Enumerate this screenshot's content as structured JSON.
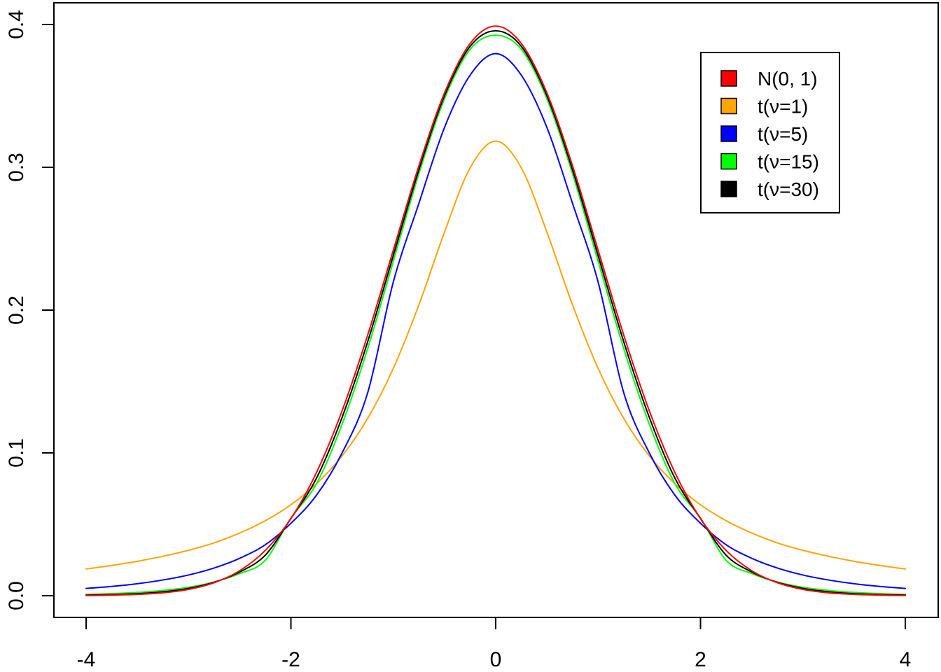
{
  "chart_data": {
    "type": "line",
    "title": "",
    "xlabel": "",
    "ylabel": "",
    "xlim": [
      -4,
      4
    ],
    "ylim": [
      0,
      0.4
    ],
    "x_ticks": [
      -4,
      -2,
      0,
      2,
      4
    ],
    "x_tick_labels": [
      "-4",
      "-2",
      "0",
      "2",
      "4"
    ],
    "y_ticks": [
      0.0,
      0.1,
      0.2,
      0.3,
      0.4
    ],
    "y_tick_labels": [
      "0.0",
      "0.1",
      "0.2",
      "0.3",
      "0.4"
    ],
    "grid": false,
    "legend_position": "top-right",
    "x": [
      -4.0,
      -3.75,
      -3.5,
      -3.25,
      -3.0,
      -2.75,
      -2.5,
      -2.25,
      -2.0,
      -1.75,
      -1.5,
      -1.25,
      -1.0,
      -0.75,
      -0.5,
      -0.25,
      0.0,
      0.25,
      0.5,
      0.75,
      1.0,
      1.25,
      1.5,
      1.75,
      2.0,
      2.25,
      2.5,
      2.75,
      3.0,
      3.25,
      3.5,
      3.75,
      4.0
    ],
    "series": [
      {
        "name": "N(0, 1)",
        "color": "#ff0000",
        "values": [
          0.0001,
          0.0004,
          0.0009,
          0.002,
          0.0044,
          0.0091,
          0.0175,
          0.0317,
          0.054,
          0.0863,
          0.1295,
          0.1826,
          0.242,
          0.3011,
          0.3521,
          0.3867,
          0.3989,
          0.3867,
          0.3521,
          0.3011,
          0.242,
          0.1826,
          0.1295,
          0.0863,
          0.054,
          0.0317,
          0.0175,
          0.0091,
          0.0044,
          0.002,
          0.0009,
          0.0004,
          0.0001
        ]
      },
      {
        "name": "t(ν=1)",
        "color": "#ffa500",
        "values": [
          0.0187,
          0.0212,
          0.0241,
          0.0276,
          0.0318,
          0.037,
          0.0439,
          0.0525,
          0.0637,
          0.0784,
          0.0979,
          0.1242,
          0.1592,
          0.2037,
          0.2546,
          0.2996,
          0.3183,
          0.2996,
          0.2546,
          0.2037,
          0.1592,
          0.1242,
          0.0979,
          0.0784,
          0.0637,
          0.0525,
          0.0439,
          0.037,
          0.0318,
          0.0276,
          0.0241,
          0.0212,
          0.0187
        ]
      },
      {
        "name": "t(ν=5)",
        "color": "#0000ff",
        "values": [
          0.0051,
          0.0065,
          0.0084,
          0.011,
          0.0145,
          0.0194,
          0.0262,
          0.0357,
          0.0507,
          0.0704,
          0.1,
          0.1422,
          0.2197,
          0.2748,
          0.3279,
          0.3645,
          0.3796,
          0.3645,
          0.3279,
          0.2748,
          0.2197,
          0.1422,
          0.1,
          0.0704,
          0.0507,
          0.0357,
          0.0262,
          0.0194,
          0.0145,
          0.011,
          0.0084,
          0.0065,
          0.0051
        ]
      },
      {
        "name": "t(ν=15)",
        "color": "#00ff00",
        "values": [
          0.0009,
          0.0014,
          0.0023,
          0.0037,
          0.0059,
          0.0096,
          0.0155,
          0.0248,
          0.0544,
          0.0784,
          0.1201,
          0.1731,
          0.2342,
          0.2955,
          0.348,
          0.3826,
          0.3925,
          0.3826,
          0.348,
          0.2955,
          0.2342,
          0.1731,
          0.1201,
          0.0784,
          0.0544,
          0.0248,
          0.0155,
          0.0096,
          0.0059,
          0.0037,
          0.0023,
          0.0014,
          0.0009
        ]
      },
      {
        "name": "t(ν=30)",
        "color": "#000000",
        "values": [
          0.0004,
          0.0008,
          0.0014,
          0.0027,
          0.0051,
          0.0094,
          0.0166,
          0.0284,
          0.0541,
          0.0823,
          0.1249,
          0.1779,
          0.2382,
          0.2983,
          0.3501,
          0.3847,
          0.3956,
          0.3847,
          0.3501,
          0.2983,
          0.2382,
          0.1779,
          0.1249,
          0.0823,
          0.0541,
          0.0284,
          0.0166,
          0.0094,
          0.0051,
          0.0027,
          0.0014,
          0.0008,
          0.0004
        ]
      }
    ]
  }
}
